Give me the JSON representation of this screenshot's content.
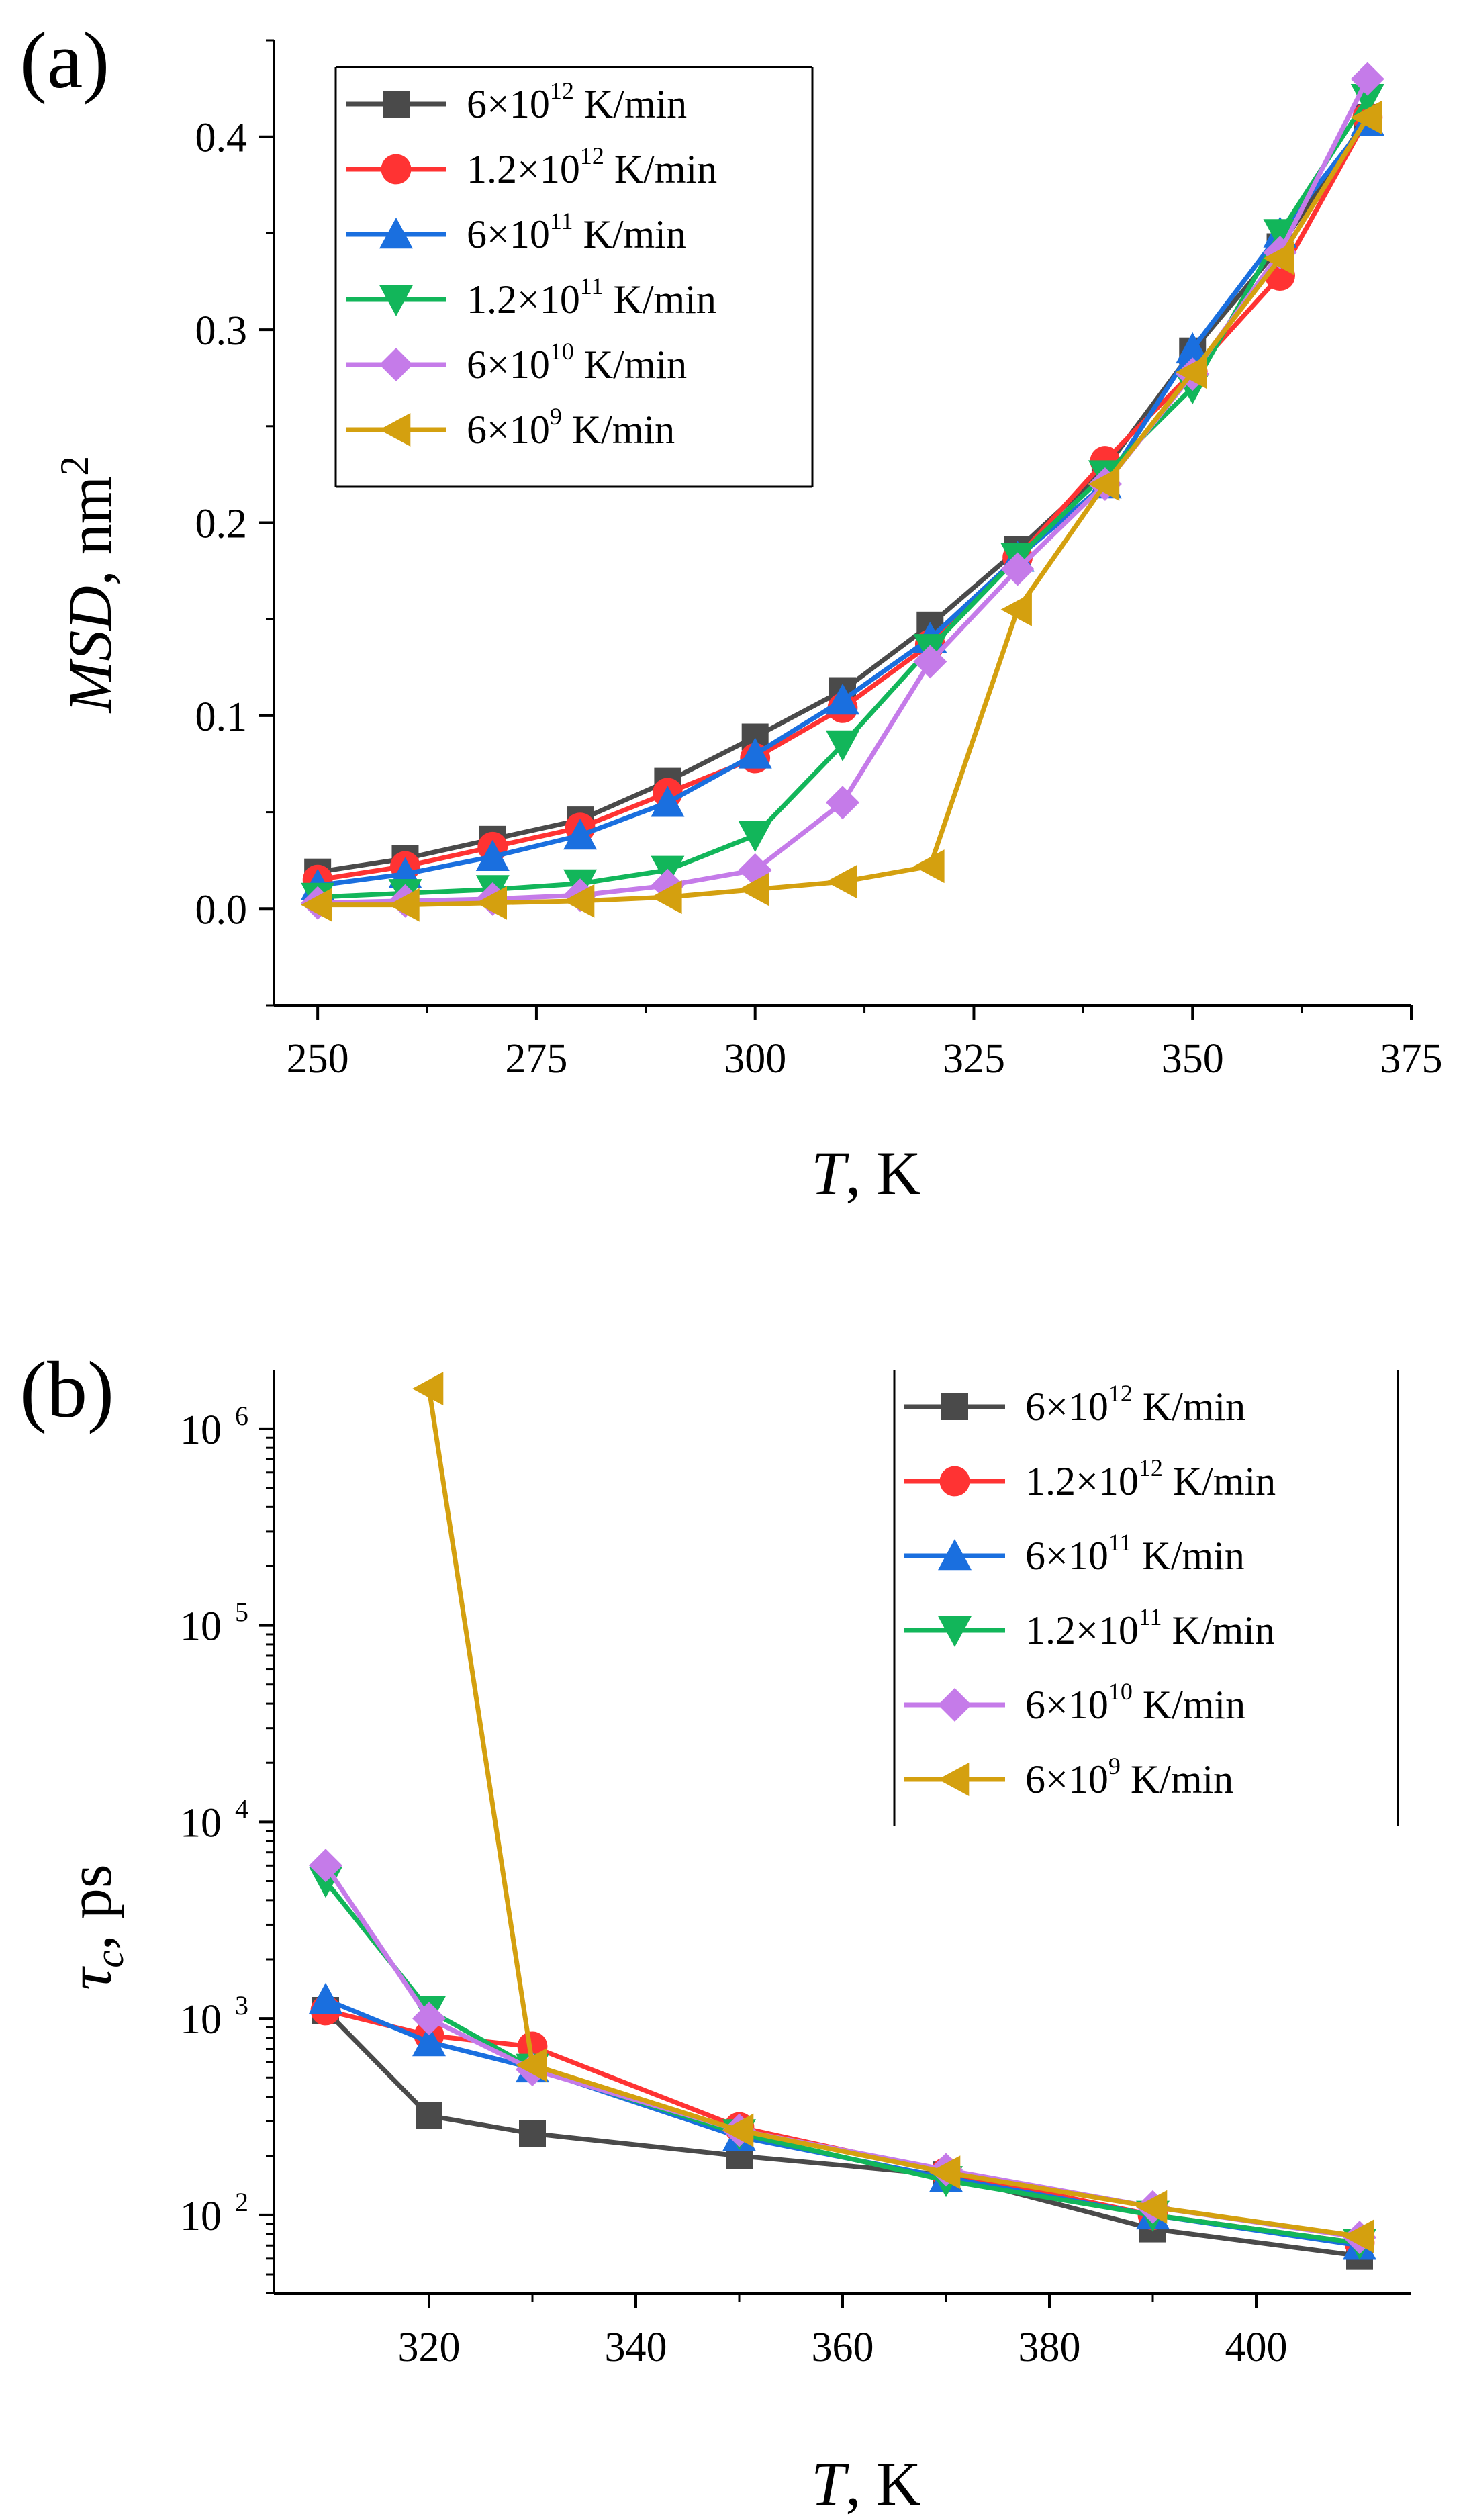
{
  "colors": {
    "black": "#4a4a4a",
    "red": "#ff3333",
    "blue": "#1a6fdf",
    "green": "#12b65a",
    "violet": "#c57be9",
    "orange": "#d4a00f"
  },
  "chart_data": [
    {
      "type": "line",
      "panel_label": "(a)",
      "ylabel_italic": "MSD",
      "ylabel_rest": ", nm",
      "ylabel_sup": "2",
      "xlabel_italic": "T",
      "xlabel_rest": ", K",
      "xlim": [
        245,
        375
      ],
      "ylim": [
        -0.05,
        0.45
      ],
      "yscale": "linear",
      "xticks": [
        250,
        275,
        300,
        325,
        350,
        375
      ],
      "xtick_labels": [
        "250",
        "275",
        "300",
        "325",
        "350",
        "375"
      ],
      "yticks": [
        0.0,
        0.1,
        0.2,
        0.3,
        0.4
      ],
      "ytick_labels": [
        "0.0",
        "0.1",
        "0.2",
        "0.3",
        "0.4"
      ],
      "legend_position": "top-left",
      "series": [
        {
          "name": "6×10^12 K/min",
          "base": "6×10",
          "exp": "12",
          "unit": " K/min",
          "marker": "square",
          "color_key": "black",
          "x": [
            250,
            260,
            270,
            280,
            290,
            300,
            310,
            320,
            330,
            340,
            350,
            360,
            370
          ],
          "y": [
            0.019,
            0.026,
            0.036,
            0.046,
            0.066,
            0.089,
            0.113,
            0.147,
            0.186,
            0.228,
            0.289,
            0.343,
            0.41
          ]
        },
        {
          "name": "1.2×10^12 K/min",
          "base": "1.2×10",
          "exp": "12",
          "unit": " K/min",
          "marker": "circle",
          "color_key": "red",
          "x": [
            250,
            260,
            270,
            280,
            290,
            300,
            310,
            320,
            330,
            340,
            350,
            360,
            370
          ],
          "y": [
            0.015,
            0.022,
            0.032,
            0.042,
            0.06,
            0.078,
            0.104,
            0.137,
            0.182,
            0.232,
            0.278,
            0.328,
            0.41
          ]
        },
        {
          "name": "6×10^11 K/min",
          "base": "6×10",
          "exp": "11",
          "unit": " K/min",
          "marker": "triangle-up",
          "color_key": "blue",
          "x": [
            250,
            260,
            270,
            280,
            290,
            300,
            310,
            320,
            330,
            340,
            350,
            360,
            370
          ],
          "y": [
            0.012,
            0.018,
            0.027,
            0.038,
            0.055,
            0.08,
            0.108,
            0.14,
            0.182,
            0.22,
            0.29,
            0.35,
            0.408
          ]
        },
        {
          "name": "1.2×10^11 K/min",
          "base": "1.2×10",
          "exp": "11",
          "unit": " K/min",
          "marker": "triangle-down",
          "color_key": "green",
          "x": [
            250,
            260,
            270,
            280,
            290,
            300,
            310,
            320,
            330,
            340,
            350,
            360,
            370
          ],
          "y": [
            0.006,
            0.008,
            0.01,
            0.013,
            0.02,
            0.038,
            0.085,
            0.135,
            0.182,
            0.225,
            0.27,
            0.35,
            0.42
          ]
        },
        {
          "name": "6×10^10 K/min",
          "base": "6×10",
          "exp": "10",
          "unit": " K/min",
          "marker": "diamond",
          "color_key": "violet",
          "x": [
            250,
            260,
            270,
            280,
            290,
            300,
            310,
            320,
            330,
            340,
            350,
            360,
            370
          ],
          "y": [
            0.003,
            0.004,
            0.005,
            0.007,
            0.012,
            0.02,
            0.055,
            0.128,
            0.176,
            0.22,
            0.277,
            0.34,
            0.43
          ]
        },
        {
          "name": "6×10^9 K/min",
          "base": "6×10",
          "exp": "9",
          "unit": " K/min",
          "marker": "triangle-left",
          "color_key": "orange",
          "x": [
            250,
            260,
            270,
            280,
            290,
            300,
            310,
            320,
            330,
            340,
            350,
            360,
            370
          ],
          "y": [
            0.002,
            0.002,
            0.003,
            0.004,
            0.006,
            0.01,
            0.014,
            0.022,
            0.155,
            0.22,
            0.278,
            0.337,
            0.41
          ]
        }
      ]
    },
    {
      "type": "line",
      "panel_label": "(b)",
      "ylabel_italic": "τ",
      "ylabel_sub": "c",
      "ylabel_rest": ", ps",
      "xlabel_italic": "T",
      "xlabel_rest": ", K",
      "xlim": [
        305,
        415
      ],
      "ylim_log10": [
        1.6,
        6.3
      ],
      "yscale": "log",
      "xticks": [
        320,
        340,
        360,
        380,
        400
      ],
      "xtick_labels": [
        "320",
        "340",
        "360",
        "380",
        "400"
      ],
      "yticks_exp": [
        2,
        3,
        4,
        5,
        6
      ],
      "ytick_base": "10",
      "ytick_exp_labels": [
        "2",
        "3",
        "4",
        "5",
        "6"
      ],
      "legend_position": "top-right",
      "series": [
        {
          "name": "6×10^12 K/min",
          "base": "6×10",
          "exp": "12",
          "unit": " K/min",
          "marker": "square",
          "color_key": "black",
          "x": [
            310,
            320,
            330,
            350,
            370,
            390,
            410
          ],
          "y": [
            1100,
            320,
            260,
            200,
            160,
            85,
            62
          ]
        },
        {
          "name": "1.2×10^12 K/min",
          "base": "1.2×10",
          "exp": "12",
          "unit": " K/min",
          "marker": "circle",
          "color_key": "red",
          "x": [
            310,
            320,
            330,
            350,
            370,
            390,
            410
          ],
          "y": [
            1100,
            820,
            720,
            280,
            165,
            100,
            72
          ]
        },
        {
          "name": "6×10^11 K/min",
          "base": "6×10",
          "exp": "11",
          "unit": " K/min",
          "marker": "triangle-up",
          "color_key": "blue",
          "x": [
            310,
            320,
            330,
            350,
            370,
            390,
            410
          ],
          "y": [
            1250,
            760,
            560,
            250,
            155,
            100,
            70
          ]
        },
        {
          "name": "1.2×10^11 K/min",
          "base": "1.2×10",
          "exp": "11",
          "unit": " K/min",
          "marker": "triangle-down",
          "color_key": "green",
          "x": [
            310,
            320,
            330,
            350,
            370,
            390,
            410
          ],
          "y": [
            5000,
            1100,
            560,
            260,
            150,
            100,
            72
          ]
        },
        {
          "name": "6×10^10 K/min",
          "base": "6×10",
          "exp": "10",
          "unit": " K/min",
          "marker": "diamond",
          "color_key": "violet",
          "x": [
            310,
            320,
            330,
            350,
            370,
            390,
            410
          ],
          "y": [
            6000,
            1000,
            550,
            270,
            170,
            110,
            77
          ]
        },
        {
          "name": "6×10^9 K/min",
          "base": "6×10",
          "exp": "9",
          "unit": " K/min",
          "marker": "triangle-left",
          "color_key": "orange",
          "x": [
            320,
            330,
            350,
            370,
            390,
            410
          ],
          "y": [
            1600000,
            580,
            270,
            165,
            110,
            78
          ]
        }
      ]
    }
  ]
}
